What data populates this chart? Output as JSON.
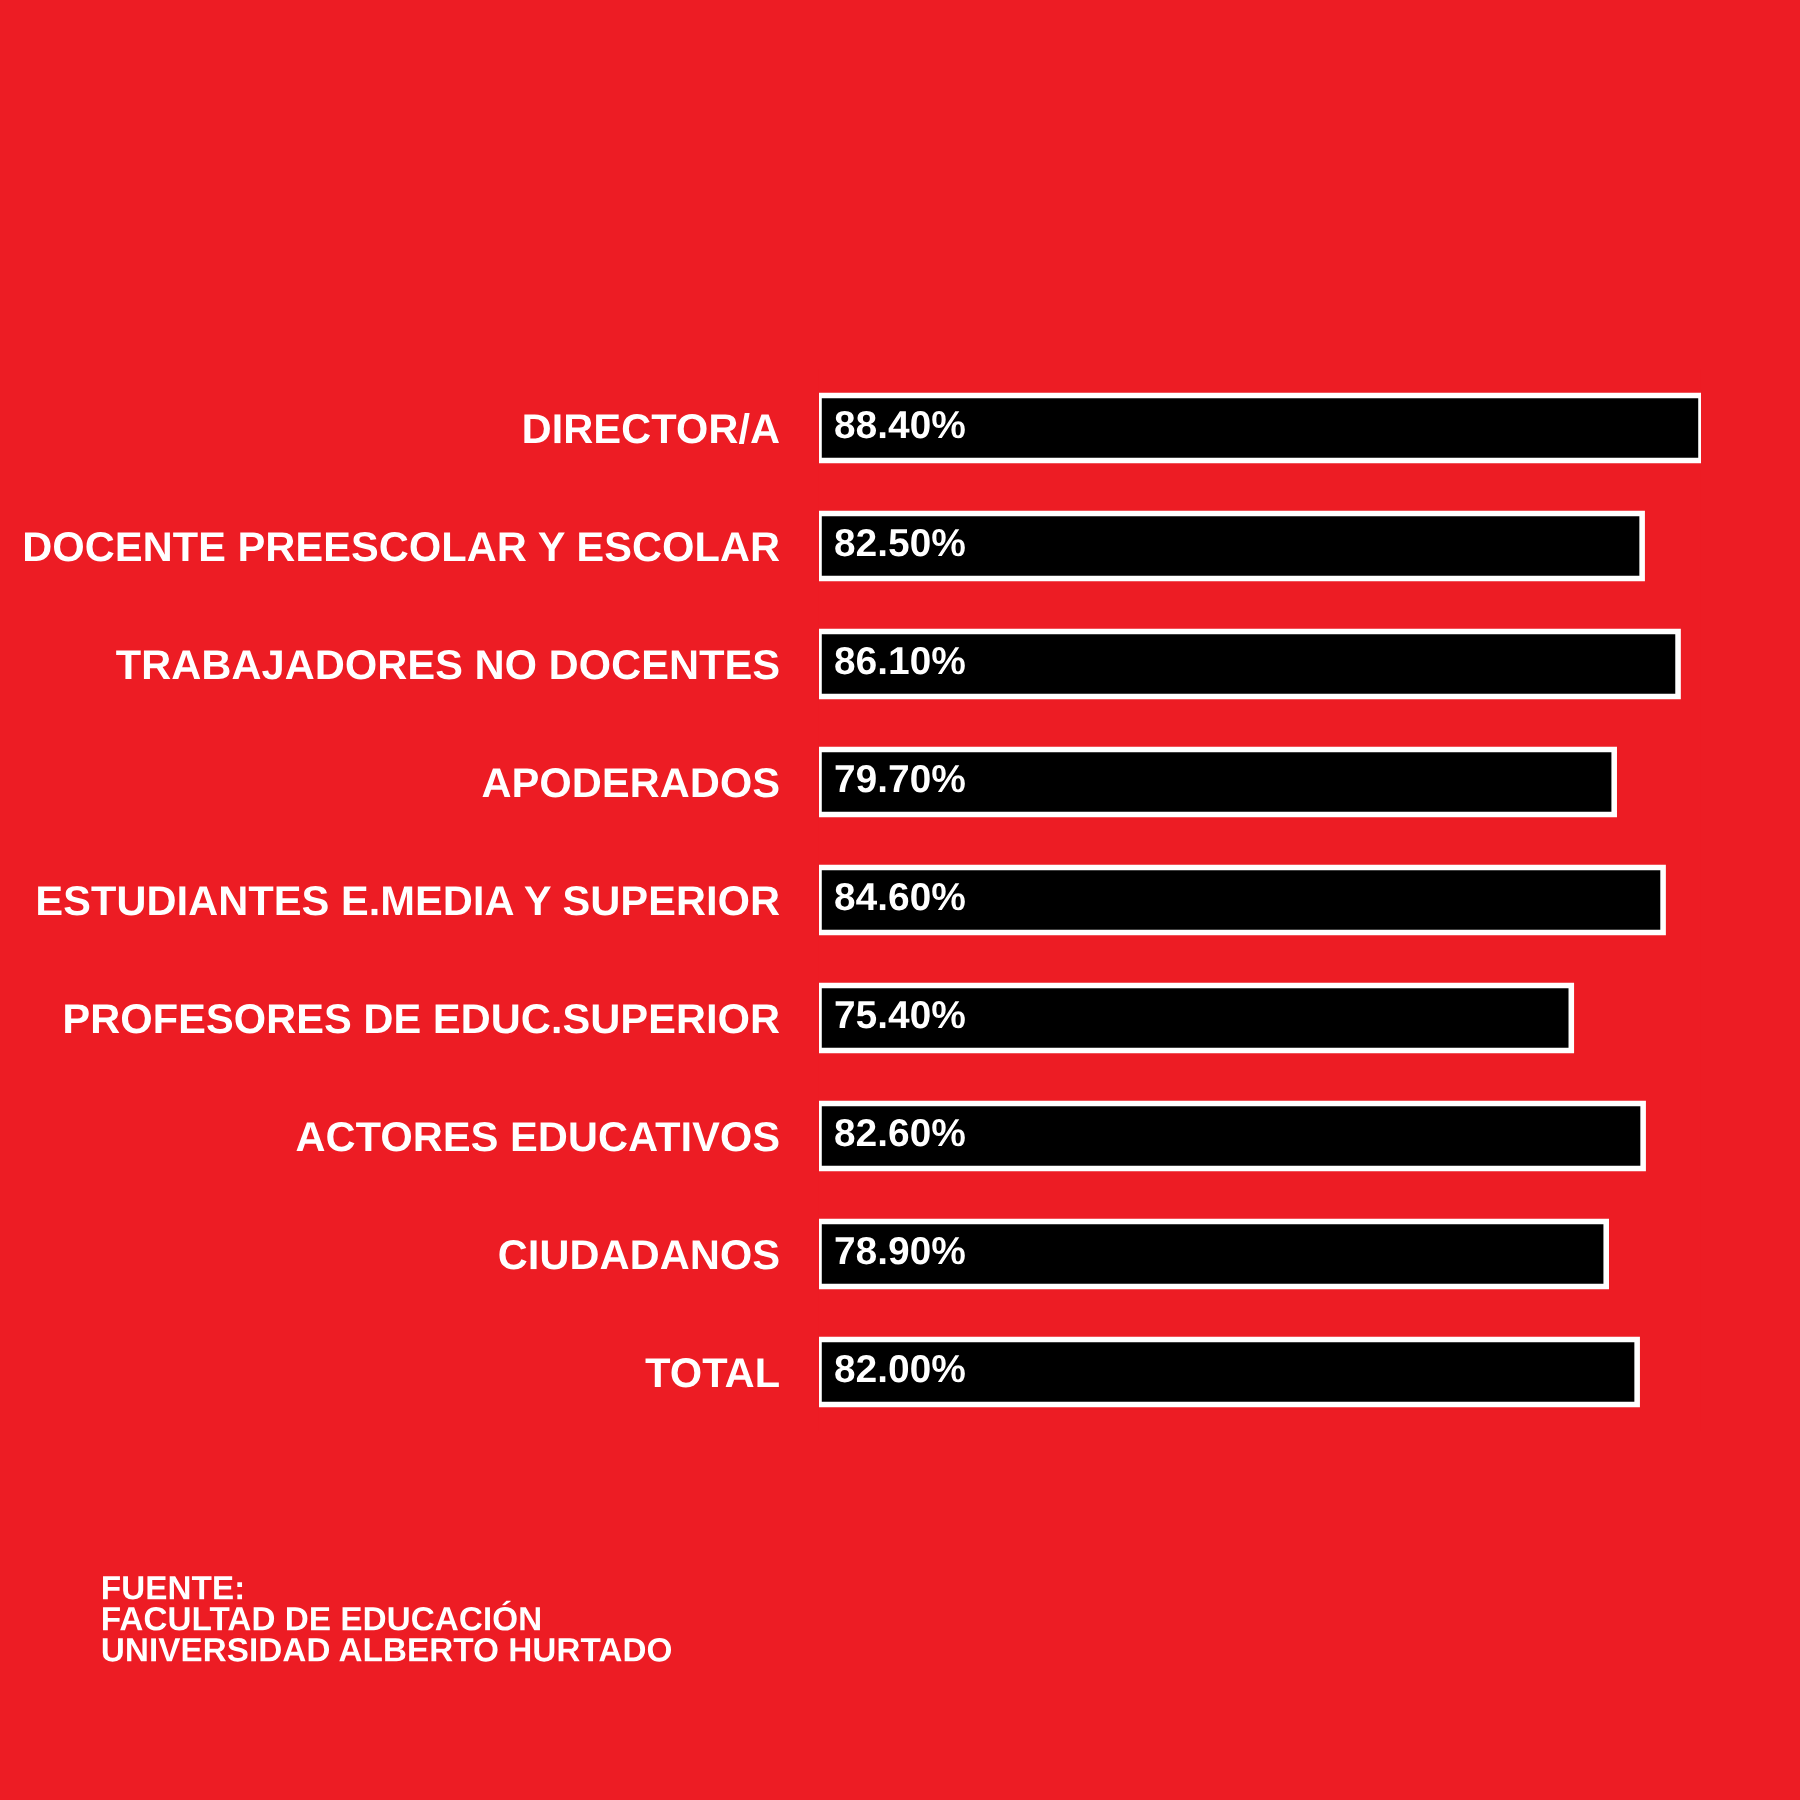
{
  "chart_data": {
    "type": "bar",
    "orientation": "horizontal",
    "categories": [
      "DIRECTOR/A",
      "DOCENTE PREESCOLAR Y ESCOLAR",
      "TRABAJADORES NO DOCENTES",
      "APODERADOS",
      "ESTUDIANTES E.MEDIA Y SUPERIOR",
      "PROFESORES DE EDUC.SUPERIOR",
      "ACTORES EDUCATIVOS",
      "CIUDADANOS",
      "TOTAL"
    ],
    "values": [
      88.4,
      82.5,
      86.1,
      79.7,
      84.6,
      75.4,
      82.6,
      78.9,
      82.0
    ],
    "value_labels": [
      "88.40%",
      "82.50%",
      "86.10%",
      "79.70%",
      "84.60%",
      "75.40%",
      "82.60%",
      "78.90%",
      "82.00%"
    ],
    "color": "#000000",
    "tick_labels": "y",
    "grid": false,
    "legend": false,
    "annotations": [
      "FUENTE:\nFACULTAD DE EDUCACIÓN\nUNIVERSIDAD ALBERTO HURTADO"
    ]
  }
}
